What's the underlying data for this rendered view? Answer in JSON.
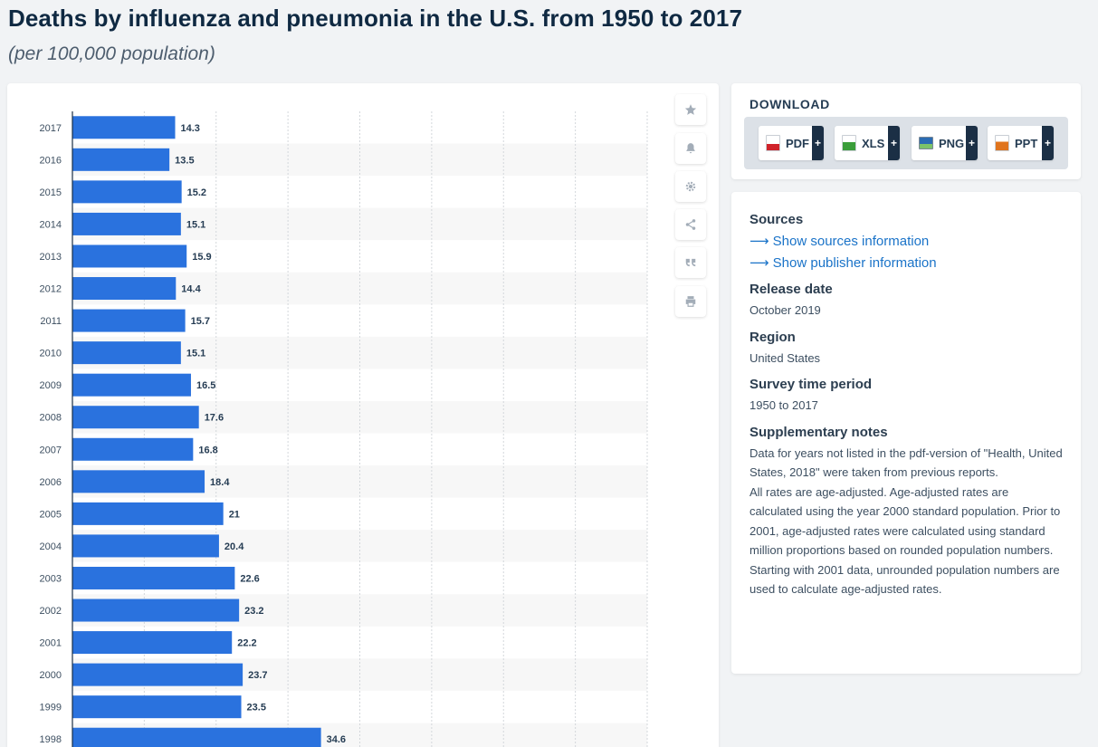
{
  "header": {
    "title": "Deaths by influenza and pneumonia in the U.S. from 1950 to 2017",
    "subtitle": "(per 100,000 population)"
  },
  "colors": {
    "bar": "#2a72de",
    "stripe": "#f7f7f7",
    "grid": "#d3d7db",
    "accent": "#1a73c8",
    "dark": "#1b2f45"
  },
  "toolbar": {
    "icons": [
      "star-icon",
      "bell-icon",
      "gear-icon",
      "share-icon",
      "quote-icon",
      "print-icon"
    ]
  },
  "download": {
    "title": "DOWNLOAD",
    "buttons": [
      {
        "label": "PDF",
        "plus": "+",
        "color": "#d0232a"
      },
      {
        "label": "XLS",
        "plus": "+",
        "color": "#3a9d3a"
      },
      {
        "label": "PNG",
        "plus": "+",
        "color": "#2b6cb3"
      },
      {
        "label": "PPT",
        "plus": "+",
        "color": "#e0741d"
      }
    ]
  },
  "info": {
    "sources_heading": "Sources",
    "sources_link": "Show sources information",
    "publisher_link": "Show publisher information",
    "release_heading": "Release date",
    "release_value": "October 2019",
    "region_heading": "Region",
    "region_value": "United States",
    "survey_heading": "Survey time period",
    "survey_value": "1950 to 2017",
    "notes_heading": "Supplementary notes",
    "notes_p1": "Data for years not listed in the pdf-version of \"Health, United States, 2018\" were taken from previous reports.",
    "notes_p2": "All rates are age-adjusted. Age-adjusted rates are calculated using the year 2000 standard population. Prior to 2001, age-adjusted rates were calculated using standard million proportions based on rounded population numbers. Starting with 2001 data, unrounded population numbers are used to calculate age-adjusted rates."
  },
  "chart_data": {
    "type": "bar",
    "orientation": "horizontal",
    "title": "Deaths by influenza and pneumonia in the U.S. from 1950 to 2017",
    "subtitle": "(per 100,000 population)",
    "xlim": [
      0,
      80
    ],
    "grid": true,
    "categories": [
      "2017",
      "2016",
      "2015",
      "2014",
      "2013",
      "2012",
      "2011",
      "2010",
      "2009",
      "2008",
      "2007",
      "2006",
      "2005",
      "2004",
      "2003",
      "2002",
      "2001",
      "2000",
      "1999",
      "1998"
    ],
    "values": [
      14.3,
      13.5,
      15.2,
      15.1,
      15.9,
      14.4,
      15.7,
      15.1,
      16.5,
      17.6,
      16.8,
      18.4,
      21,
      20.4,
      22.6,
      23.2,
      22.2,
      23.7,
      23.5,
      34.6
    ],
    "labels": [
      "14.3",
      "13.5",
      "15.2",
      "15.1",
      "15.9",
      "14.4",
      "15.7",
      "15.1",
      "16.5",
      "17.6",
      "16.8",
      "18.4",
      "21",
      "20.4",
      "22.6",
      "23.2",
      "22.2",
      "23.7",
      "23.5",
      "34.6"
    ]
  }
}
